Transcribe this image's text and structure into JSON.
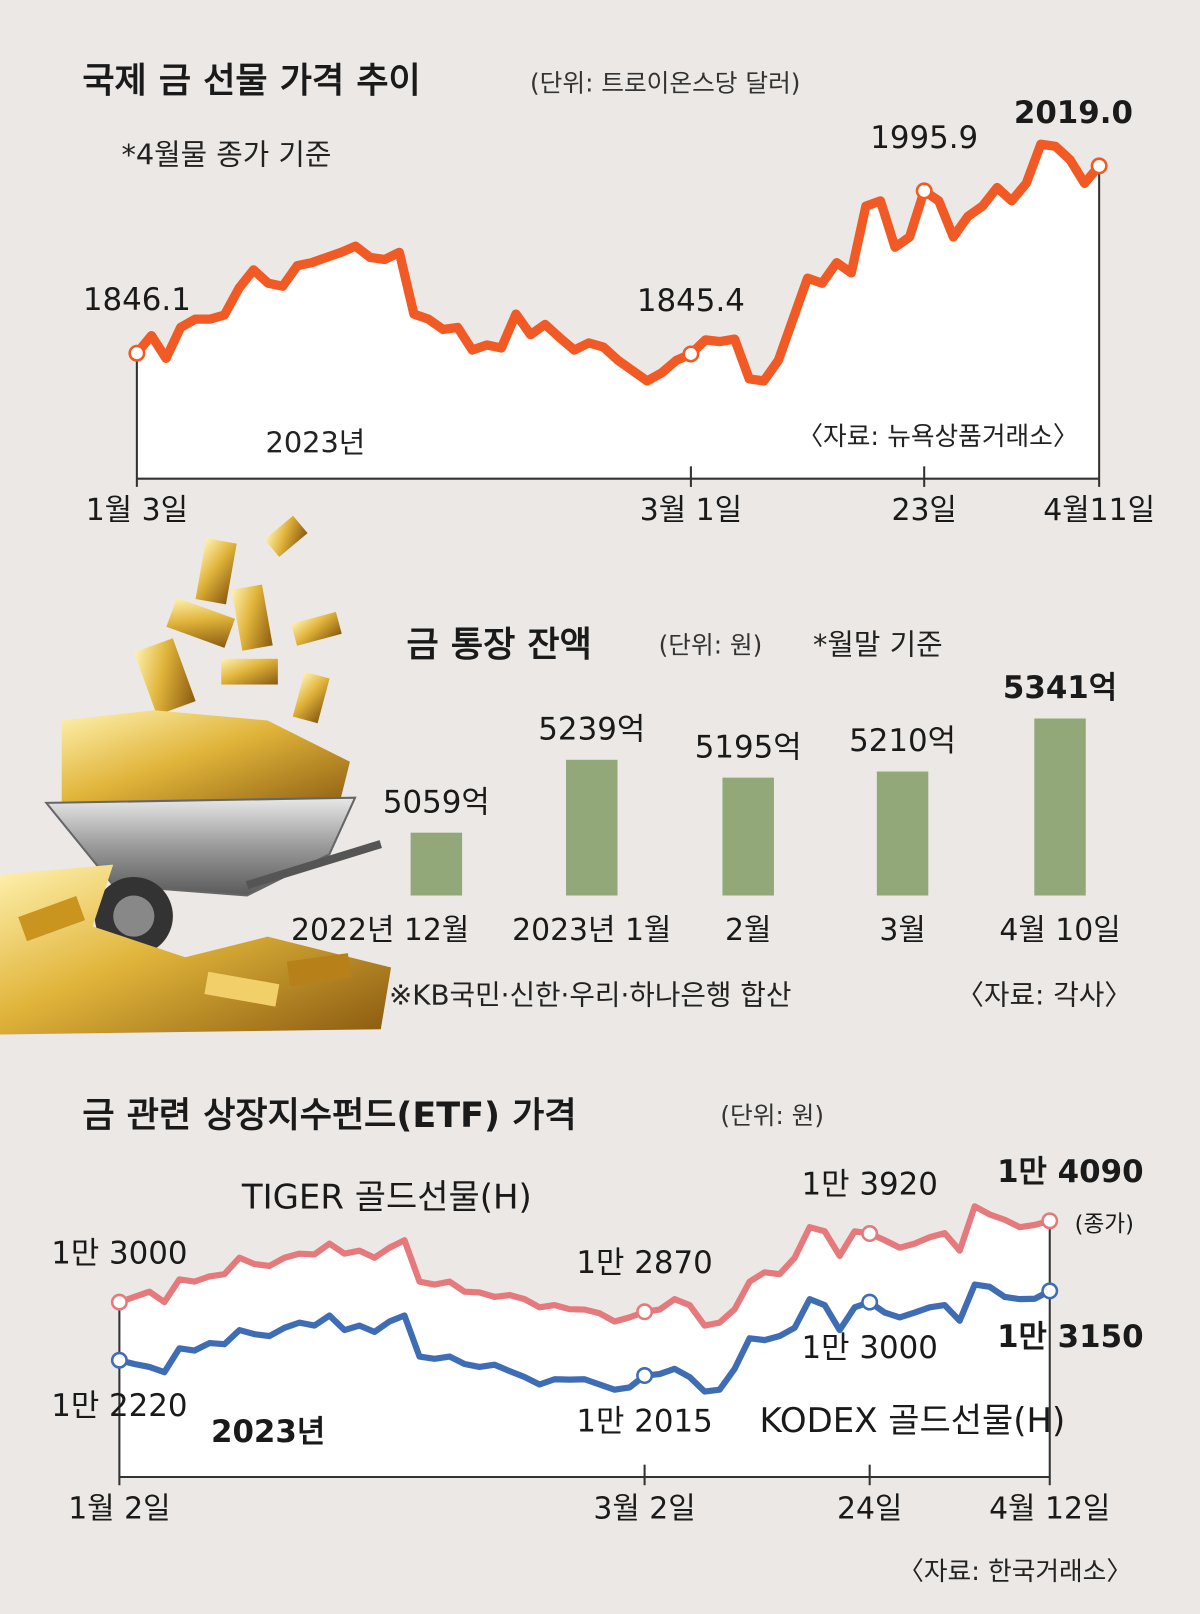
{
  "chart_data": [
    {
      "type": "line",
      "title": "국제 금 선물 가격 추이",
      "unit": "(단위: 트로이온스당 달러)",
      "note": "*4월물 종가 기준",
      "year_label": "2023년",
      "source": "〈자료: 뉴욕상품거래소〉",
      "color": "#f15a24",
      "categories": [
        "1월 3일",
        null,
        null,
        null,
        null,
        null,
        null,
        null,
        null,
        null,
        null,
        null,
        null,
        null,
        null,
        null,
        null,
        null,
        null,
        null,
        null,
        null,
        null,
        null,
        null,
        null,
        null,
        null,
        null,
        null,
        null,
        null,
        null,
        null,
        null,
        null,
        null,
        null,
        "3월 1일",
        null,
        null,
        null,
        null,
        null,
        null,
        null,
        null,
        null,
        null,
        null,
        null,
        null,
        null,
        null,
        "23일",
        null,
        null,
        null,
        null,
        null,
        null,
        null,
        null,
        null,
        null,
        null,
        "4월11일"
      ],
      "values": [
        1846.1,
        1862.3,
        1841.3,
        1869.9,
        1877.5,
        1877.5,
        1881.3,
        1906.0,
        1923.0,
        1910.7,
        1907.9,
        1926.9,
        1929.7,
        1934.5,
        1939.2,
        1944.9,
        1934.5,
        1932.6,
        1939.2,
        1882.2,
        1877.5,
        1868.0,
        1869.9,
        1849.0,
        1853.7,
        1850.9,
        1882.2,
        1863.2,
        1872.7,
        1860.4,
        1849.0,
        1855.6,
        1851.8,
        1839.5,
        1830.0,
        1820.5,
        1828.0,
        1839.5,
        1845.4,
        1858.4,
        1856.8,
        1859.1,
        1822.4,
        1820.5,
        1839.5,
        1877.5,
        1915.4,
        1910.7,
        1929.7,
        1920.2,
        1981.9,
        1986.7,
        1943.9,
        1953.4,
        1995.9,
        1986.7,
        1953.4,
        1972.4,
        1981.9,
        1999.0,
        1986.7,
        2002.9,
        2039.0,
        2037.1,
        2024.7,
        2002.9,
        2019.0
      ],
      "value_labels": [
        "1846.1",
        null,
        null,
        null,
        null,
        null,
        null,
        null,
        null,
        null,
        null,
        null,
        null,
        null,
        null,
        null,
        null,
        null,
        null,
        null,
        null,
        null,
        null,
        null,
        null,
        null,
        null,
        null,
        null,
        null,
        null,
        null,
        null,
        null,
        null,
        null,
        null,
        null,
        "1845.4",
        null,
        null,
        null,
        null,
        null,
        null,
        null,
        null,
        null,
        null,
        null,
        null,
        null,
        null,
        null,
        "1995.9",
        null,
        null,
        null,
        null,
        null,
        null,
        null,
        null,
        null,
        null,
        null,
        "2019.0"
      ]
    },
    {
      "type": "bar",
      "title": "금 통장 잔액",
      "unit": "(단위: 원)",
      "note": "*월말 기준",
      "color": "#93a878",
      "categories": [
        "2022년 12월",
        "2023년 1월",
        "2월",
        "3월",
        "4월 10일"
      ],
      "values": [
        5059,
        5239,
        5195,
        5210,
        5341
      ],
      "value_labels": [
        "5059억",
        "5239억",
        "5195억",
        "5210억",
        "5341억"
      ],
      "footnote": "※KB국민·신한·우리·하나은행 합산",
      "source": "〈자료: 각사〉"
    },
    {
      "type": "line",
      "title": "금 관련 상장지수펀드(ETF) 가격",
      "unit": "(단위: 원)",
      "year_label": "2023년",
      "source": "〈자료: 한국거래소〉",
      "close_note": "(종가)",
      "categories": [
        "1월 2일",
        null,
        null,
        null,
        null,
        null,
        null,
        null,
        null,
        null,
        null,
        null,
        null,
        null,
        null,
        null,
        null,
        null,
        null,
        null,
        null,
        null,
        null,
        null,
        null,
        null,
        null,
        null,
        null,
        null,
        null,
        null,
        null,
        null,
        null,
        "3월 2일",
        null,
        null,
        null,
        null,
        null,
        null,
        null,
        null,
        null,
        null,
        null,
        null,
        null,
        null,
        "24일",
        null,
        null,
        null,
        null,
        null,
        null,
        null,
        null,
        null,
        null,
        null,
        "4월 12일"
      ],
      "series": [
        {
          "name": "TIGER 골드선물(H)",
          "color": "#e5797b",
          "values": [
            13000,
            13070,
            13140,
            13000,
            13305,
            13275,
            13345,
            13375,
            13595,
            13510,
            13485,
            13595,
            13650,
            13640,
            13785,
            13650,
            13690,
            13595,
            13730,
            13830,
            13275,
            13235,
            13275,
            13140,
            13130,
            13070,
            13095,
            13040,
            12930,
            12960,
            12905,
            12900,
            12850,
            12740,
            12795,
            12870,
            12900,
            13040,
            12960,
            12685,
            12725,
            12905,
            13275,
            13400,
            13375,
            13595,
            14005,
            13950,
            13620,
            13950,
            13920,
            13830,
            13730,
            13785,
            13870,
            13925,
            13690,
            14285,
            14175,
            14105,
            14005,
            14035,
            14090
          ],
          "value_labels": [
            "1만 3000",
            null,
            null,
            null,
            null,
            null,
            null,
            null,
            null,
            null,
            null,
            null,
            null,
            null,
            null,
            null,
            null,
            null,
            null,
            null,
            null,
            null,
            null,
            null,
            null,
            null,
            null,
            null,
            null,
            null,
            null,
            null,
            null,
            null,
            null,
            "1만 2870",
            null,
            null,
            null,
            null,
            null,
            null,
            null,
            null,
            null,
            null,
            null,
            null,
            null,
            null,
            "1만 3920",
            null,
            null,
            null,
            null,
            null,
            null,
            null,
            null,
            null,
            null,
            null,
            "1만 4090"
          ]
        },
        {
          "name": "KODEX 골드선물(H)",
          "color": "#3f6db5",
          "values": [
            12220,
            12170,
            12130,
            12060,
            12380,
            12350,
            12450,
            12435,
            12625,
            12570,
            12545,
            12655,
            12725,
            12685,
            12820,
            12625,
            12685,
            12600,
            12740,
            12820,
            12270,
            12240,
            12270,
            12170,
            12130,
            12160,
            12075,
            11995,
            11895,
            11965,
            11960,
            11965,
            11895,
            11825,
            11855,
            12015,
            12035,
            12105,
            11995,
            11800,
            11825,
            12105,
            12515,
            12490,
            12545,
            12655,
            13040,
            12960,
            12625,
            12930,
            13000,
            12860,
            12795,
            12860,
            12930,
            12960,
            12750,
            13235,
            13205,
            13070,
            13040,
            13045,
            13150
          ],
          "value_labels": [
            "1만 2220",
            null,
            null,
            null,
            null,
            null,
            null,
            null,
            null,
            null,
            null,
            null,
            null,
            null,
            null,
            null,
            null,
            null,
            null,
            null,
            null,
            null,
            null,
            null,
            null,
            null,
            null,
            null,
            null,
            null,
            null,
            null,
            null,
            null,
            null,
            "1만 2015",
            null,
            null,
            null,
            null,
            null,
            null,
            null,
            null,
            null,
            null,
            null,
            null,
            null,
            null,
            "1만 3000",
            null,
            null,
            null,
            null,
            null,
            null,
            null,
            null,
            null,
            null,
            null,
            "1만 3150"
          ]
        }
      ]
    }
  ]
}
